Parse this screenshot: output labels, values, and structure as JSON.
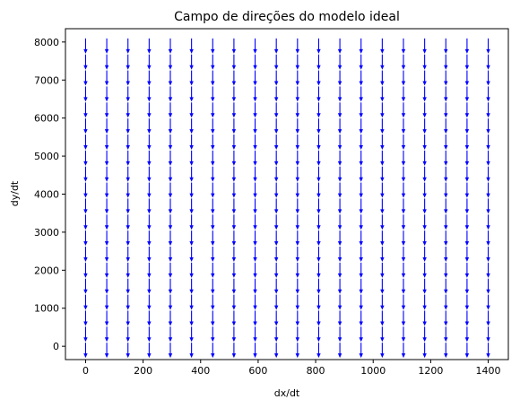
{
  "chart_data": {
    "type": "quiver",
    "title": "Campo de direções do modelo ideal",
    "xlabel": "dx/dt",
    "ylabel": "dy/dt",
    "xlim": [
      -70,
      1470
    ],
    "ylim": [
      -350,
      8350
    ],
    "xticks": [
      0,
      200,
      400,
      600,
      800,
      1000,
      1200,
      1400
    ],
    "yticks": [
      0,
      1000,
      2000,
      3000,
      4000,
      5000,
      6000,
      7000,
      8000
    ],
    "grid": false,
    "arrow_color": "#0000ff",
    "arrow_direction": "down",
    "grid_points": {
      "x_start": 0,
      "x_end": 1400,
      "x_count": 20,
      "y_start": 0,
      "y_end": 8000,
      "y_count": 20
    }
  }
}
